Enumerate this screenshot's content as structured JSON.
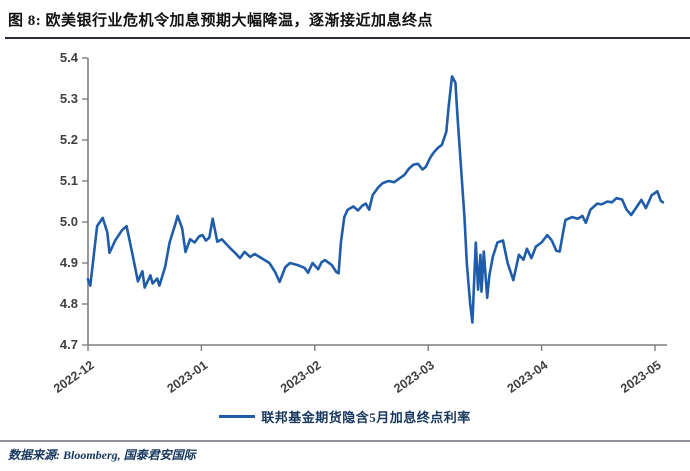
{
  "figure": {
    "title": "图 8: 欧美银行业危机令加息预期大幅降温，逐渐接近加息终点",
    "source": "数据来源: Bloomberg, 国泰君安国际"
  },
  "colors": {
    "line": "#1f5ca9",
    "navy_text": "#17375e",
    "axis": "#7f7f7f",
    "tick_label": "#3f3f3f"
  },
  "chart_data": {
    "type": "line",
    "title": "",
    "xlabel": "",
    "ylabel": "",
    "grid": false,
    "legend_position": "bottom",
    "ylim": [
      4.7,
      5.4
    ],
    "y_ticks": [
      4.7,
      4.8,
      4.9,
      5.0,
      5.1,
      5.2,
      5.3,
      5.4
    ],
    "x_tick_labels": [
      "2022-12",
      "2023-01",
      "2023-02",
      "2023-03",
      "2023-04",
      "2023-05"
    ],
    "x_axis_span_months": 5.106,
    "series": [
      {
        "name": "联邦基金期货隐含5月加息终点利率",
        "color": "#1f5ca9",
        "points": [
          [
            0.0,
            4.86
          ],
          [
            0.02,
            4.845
          ],
          [
            0.08,
            4.99
          ],
          [
            0.13,
            5.01
          ],
          [
            0.17,
            4.975
          ],
          [
            0.19,
            4.925
          ],
          [
            0.24,
            4.955
          ],
          [
            0.3,
            4.98
          ],
          [
            0.34,
            4.99
          ],
          [
            0.4,
            4.91
          ],
          [
            0.44,
            4.855
          ],
          [
            0.48,
            4.88
          ],
          [
            0.5,
            4.84
          ],
          [
            0.55,
            4.87
          ],
          [
            0.57,
            4.85
          ],
          [
            0.61,
            4.862
          ],
          [
            0.63,
            4.845
          ],
          [
            0.68,
            4.89
          ],
          [
            0.72,
            4.95
          ],
          [
            0.77,
            4.995
          ],
          [
            0.79,
            5.015
          ],
          [
            0.83,
            4.985
          ],
          [
            0.86,
            4.927
          ],
          [
            0.9,
            4.958
          ],
          [
            0.94,
            4.95
          ],
          [
            0.98,
            4.965
          ],
          [
            1.01,
            4.968
          ],
          [
            1.04,
            4.955
          ],
          [
            1.07,
            4.962
          ],
          [
            1.1,
            5.008
          ],
          [
            1.14,
            4.952
          ],
          [
            1.18,
            4.958
          ],
          [
            1.25,
            4.937
          ],
          [
            1.3,
            4.924
          ],
          [
            1.34,
            4.912
          ],
          [
            1.38,
            4.927
          ],
          [
            1.43,
            4.915
          ],
          [
            1.47,
            4.922
          ],
          [
            1.53,
            4.912
          ],
          [
            1.6,
            4.9
          ],
          [
            1.65,
            4.878
          ],
          [
            1.69,
            4.854
          ],
          [
            1.74,
            4.89
          ],
          [
            1.78,
            4.9
          ],
          [
            1.85,
            4.895
          ],
          [
            1.91,
            4.888
          ],
          [
            1.94,
            4.876
          ],
          [
            1.98,
            4.9
          ],
          [
            2.03,
            4.885
          ],
          [
            2.06,
            4.902
          ],
          [
            2.09,
            4.907
          ],
          [
            2.15,
            4.895
          ],
          [
            2.19,
            4.878
          ],
          [
            2.21,
            4.875
          ],
          [
            2.23,
            4.95
          ],
          [
            2.26,
            5.012
          ],
          [
            2.29,
            5.03
          ],
          [
            2.34,
            5.038
          ],
          [
            2.38,
            5.028
          ],
          [
            2.42,
            5.04
          ],
          [
            2.45,
            5.045
          ],
          [
            2.48,
            5.03
          ],
          [
            2.51,
            5.065
          ],
          [
            2.56,
            5.085
          ],
          [
            2.6,
            5.095
          ],
          [
            2.65,
            5.1
          ],
          [
            2.7,
            5.097
          ],
          [
            2.74,
            5.105
          ],
          [
            2.79,
            5.115
          ],
          [
            2.83,
            5.13
          ],
          [
            2.87,
            5.14
          ],
          [
            2.91,
            5.142
          ],
          [
            2.95,
            5.128
          ],
          [
            2.98,
            5.135
          ],
          [
            3.02,
            5.158
          ],
          [
            3.05,
            5.17
          ],
          [
            3.09,
            5.182
          ],
          [
            3.12,
            5.188
          ],
          [
            3.16,
            5.22
          ],
          [
            3.18,
            5.28
          ],
          [
            3.21,
            5.355
          ],
          [
            3.24,
            5.34
          ],
          [
            3.26,
            5.25
          ],
          [
            3.29,
            5.13
          ],
          [
            3.32,
            5.01
          ],
          [
            3.34,
            4.9
          ],
          [
            3.37,
            4.8
          ],
          [
            3.39,
            4.755
          ],
          [
            3.42,
            4.95
          ],
          [
            3.44,
            4.835
          ],
          [
            3.46,
            4.92
          ],
          [
            3.47,
            4.83
          ],
          [
            3.49,
            4.928
          ],
          [
            3.52,
            4.815
          ],
          [
            3.54,
            4.87
          ],
          [
            3.57,
            4.915
          ],
          [
            3.61,
            4.95
          ],
          [
            3.66,
            4.955
          ],
          [
            3.7,
            4.9
          ],
          [
            3.75,
            4.858
          ],
          [
            3.8,
            4.92
          ],
          [
            3.84,
            4.908
          ],
          [
            3.87,
            4.935
          ],
          [
            3.91,
            4.912
          ],
          [
            3.95,
            4.94
          ],
          [
            4.0,
            4.95
          ],
          [
            4.05,
            4.968
          ],
          [
            4.09,
            4.955
          ],
          [
            4.13,
            4.93
          ],
          [
            4.16,
            4.928
          ],
          [
            4.19,
            4.975
          ],
          [
            4.21,
            5.005
          ],
          [
            4.27,
            5.012
          ],
          [
            4.32,
            5.008
          ],
          [
            4.36,
            5.015
          ],
          [
            4.39,
            4.998
          ],
          [
            4.43,
            5.03
          ],
          [
            4.49,
            5.045
          ],
          [
            4.53,
            5.043
          ],
          [
            4.58,
            5.05
          ],
          [
            4.62,
            5.048
          ],
          [
            4.66,
            5.058
          ],
          [
            4.71,
            5.055
          ],
          [
            4.75,
            5.03
          ],
          [
            4.79,
            5.017
          ],
          [
            4.88,
            5.054
          ],
          [
            4.92,
            5.034
          ],
          [
            4.97,
            5.065
          ],
          [
            5.02,
            5.075
          ],
          [
            5.05,
            5.052
          ],
          [
            5.07,
            5.048
          ]
        ]
      }
    ]
  }
}
